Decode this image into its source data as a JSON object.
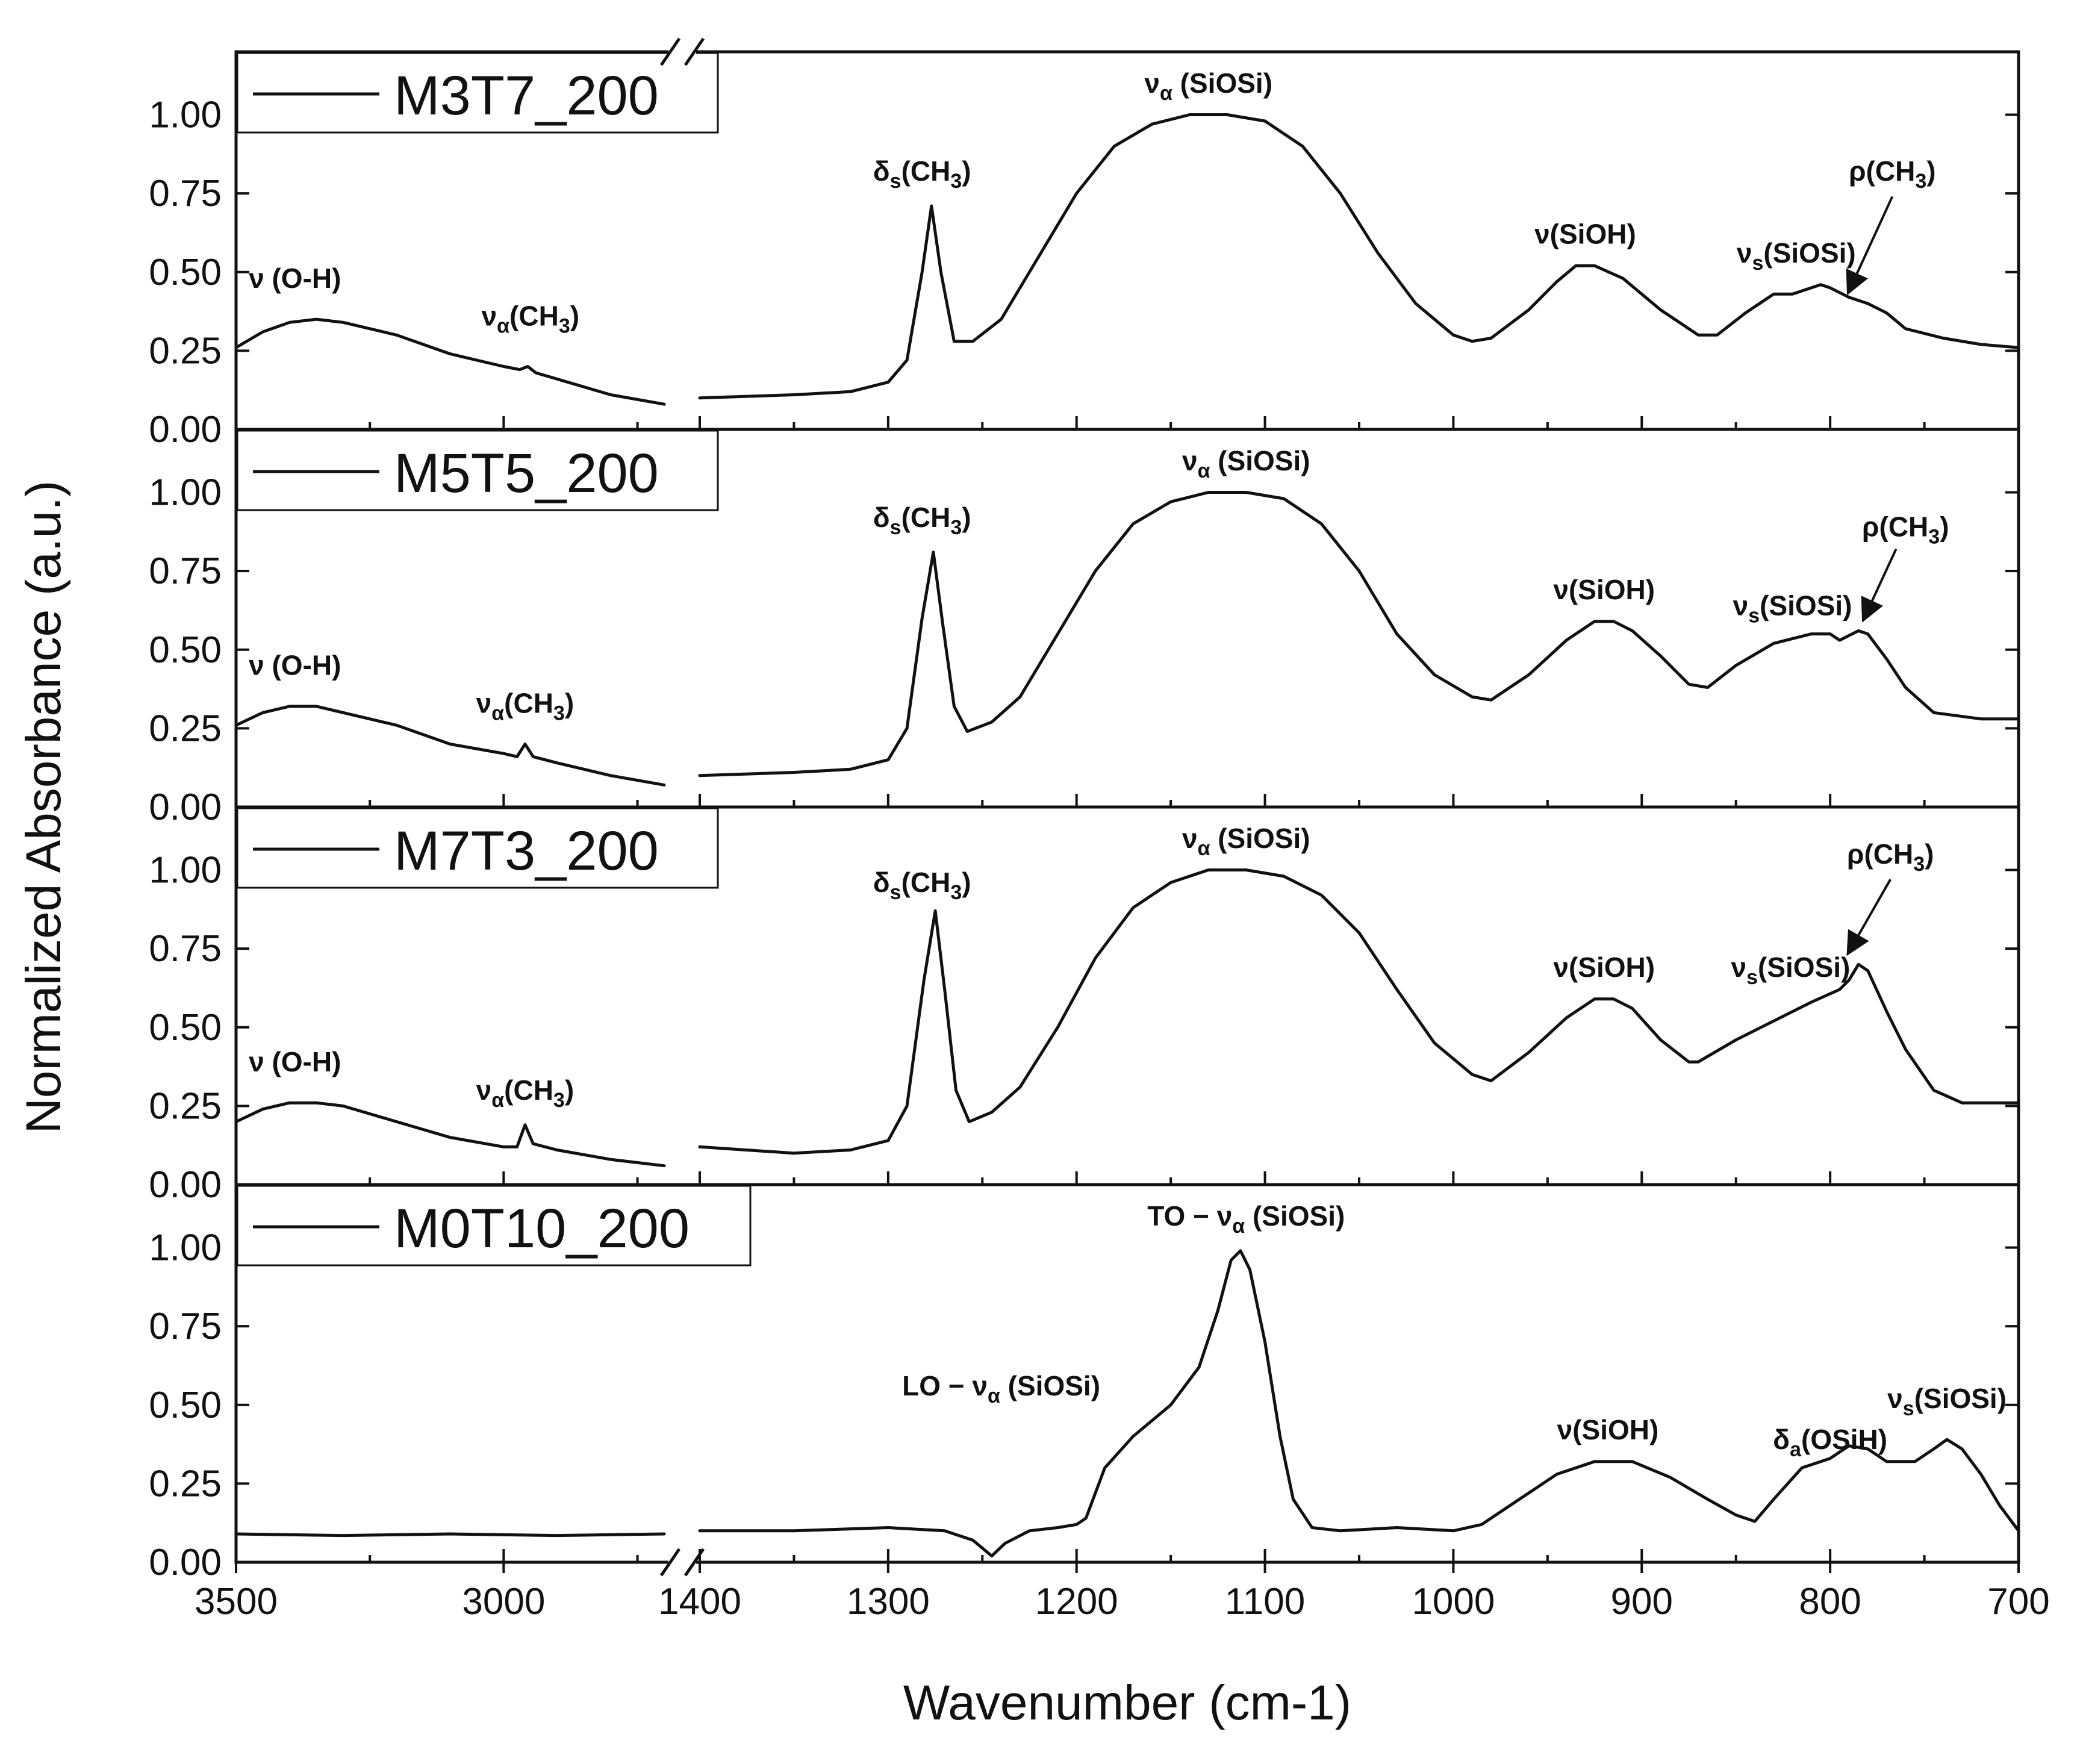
{
  "chart_data": {
    "type": "line",
    "title": "",
    "xlabel": "Wavenumber (cm-1)",
    "ylabel": "Normalized Absorbance (a.u.)",
    "x_axis": {
      "segments": [
        [
          3500,
          2700
        ],
        [
          1400,
          700
        ]
      ],
      "break": [
        2700,
        1400
      ],
      "ticks": [
        3500,
        3000,
        1400,
        1300,
        1200,
        1100,
        1000,
        900,
        800,
        700
      ],
      "tick_labels": [
        "3500",
        "3000",
        "1400",
        "1300",
        "1200",
        "1100",
        "1000",
        "900",
        "800",
        "700"
      ],
      "reversed": true
    },
    "y_axis": {
      "ylim": [
        0,
        1.2
      ],
      "ticks": [
        0,
        0.25,
        0.5,
        0.75,
        1.0
      ],
      "tick_labels": [
        "0.00",
        "0.25",
        "0.50",
        "0.75",
        "1.00"
      ]
    },
    "panels": [
      {
        "name": "M3T7_200",
        "points": [
          [
            3500,
            0.26
          ],
          [
            3450,
            0.31
          ],
          [
            3400,
            0.34
          ],
          [
            3350,
            0.35
          ],
          [
            3300,
            0.34
          ],
          [
            3200,
            0.3
          ],
          [
            3100,
            0.24
          ],
          [
            3000,
            0.2
          ],
          [
            2970,
            0.19
          ],
          [
            2955,
            0.2
          ],
          [
            2940,
            0.18
          ],
          [
            2900,
            0.16
          ],
          [
            2800,
            0.11
          ],
          [
            2700,
            0.08
          ],
          [
            1400,
            0.1
          ],
          [
            1350,
            0.11
          ],
          [
            1320,
            0.12
          ],
          [
            1300,
            0.15
          ],
          [
            1290,
            0.22
          ],
          [
            1282,
            0.5
          ],
          [
            1277,
            0.71
          ],
          [
            1272,
            0.5
          ],
          [
            1265,
            0.28
          ],
          [
            1255,
            0.28
          ],
          [
            1240,
            0.35
          ],
          [
            1220,
            0.55
          ],
          [
            1200,
            0.75
          ],
          [
            1180,
            0.9
          ],
          [
            1160,
            0.97
          ],
          [
            1140,
            1.0
          ],
          [
            1120,
            1.0
          ],
          [
            1100,
            0.98
          ],
          [
            1080,
            0.9
          ],
          [
            1060,
            0.75
          ],
          [
            1040,
            0.56
          ],
          [
            1020,
            0.4
          ],
          [
            1000,
            0.3
          ],
          [
            990,
            0.28
          ],
          [
            980,
            0.29
          ],
          [
            960,
            0.38
          ],
          [
            945,
            0.47
          ],
          [
            935,
            0.52
          ],
          [
            925,
            0.52
          ],
          [
            910,
            0.48
          ],
          [
            890,
            0.38
          ],
          [
            870,
            0.3
          ],
          [
            860,
            0.3
          ],
          [
            845,
            0.37
          ],
          [
            830,
            0.43
          ],
          [
            820,
            0.43
          ],
          [
            805,
            0.46
          ],
          [
            800,
            0.45
          ],
          [
            790,
            0.42
          ],
          [
            780,
            0.4
          ],
          [
            770,
            0.37
          ],
          [
            760,
            0.32
          ],
          [
            740,
            0.29
          ],
          [
            720,
            0.27
          ],
          [
            700,
            0.26
          ]
        ]
      },
      {
        "name": "M5T5_200",
        "points": [
          [
            3500,
            0.26
          ],
          [
            3450,
            0.3
          ],
          [
            3400,
            0.32
          ],
          [
            3350,
            0.32
          ],
          [
            3300,
            0.3
          ],
          [
            3200,
            0.26
          ],
          [
            3100,
            0.2
          ],
          [
            3000,
            0.17
          ],
          [
            2975,
            0.16
          ],
          [
            2960,
            0.2
          ],
          [
            2945,
            0.16
          ],
          [
            2900,
            0.14
          ],
          [
            2800,
            0.1
          ],
          [
            2700,
            0.07
          ],
          [
            1400,
            0.1
          ],
          [
            1350,
            0.11
          ],
          [
            1320,
            0.12
          ],
          [
            1300,
            0.15
          ],
          [
            1290,
            0.25
          ],
          [
            1282,
            0.6
          ],
          [
            1276,
            0.81
          ],
          [
            1271,
            0.58
          ],
          [
            1265,
            0.32
          ],
          [
            1258,
            0.24
          ],
          [
            1245,
            0.27
          ],
          [
            1230,
            0.35
          ],
          [
            1210,
            0.55
          ],
          [
            1190,
            0.75
          ],
          [
            1170,
            0.9
          ],
          [
            1150,
            0.97
          ],
          [
            1130,
            1.0
          ],
          [
            1110,
            1.0
          ],
          [
            1090,
            0.98
          ],
          [
            1070,
            0.9
          ],
          [
            1050,
            0.75
          ],
          [
            1030,
            0.55
          ],
          [
            1010,
            0.42
          ],
          [
            990,
            0.35
          ],
          [
            980,
            0.34
          ],
          [
            960,
            0.42
          ],
          [
            940,
            0.53
          ],
          [
            925,
            0.59
          ],
          [
            915,
            0.59
          ],
          [
            905,
            0.56
          ],
          [
            890,
            0.48
          ],
          [
            875,
            0.39
          ],
          [
            865,
            0.38
          ],
          [
            850,
            0.45
          ],
          [
            830,
            0.52
          ],
          [
            810,
            0.55
          ],
          [
            800,
            0.55
          ],
          [
            795,
            0.53
          ],
          [
            785,
            0.56
          ],
          [
            780,
            0.55
          ],
          [
            770,
            0.47
          ],
          [
            760,
            0.38
          ],
          [
            745,
            0.3
          ],
          [
            720,
            0.28
          ],
          [
            700,
            0.28
          ]
        ]
      },
      {
        "name": "M7T3_200",
        "points": [
          [
            3500,
            0.2
          ],
          [
            3450,
            0.24
          ],
          [
            3400,
            0.26
          ],
          [
            3350,
            0.26
          ],
          [
            3300,
            0.25
          ],
          [
            3200,
            0.2
          ],
          [
            3100,
            0.15
          ],
          [
            3000,
            0.12
          ],
          [
            2975,
            0.12
          ],
          [
            2960,
            0.19
          ],
          [
            2945,
            0.13
          ],
          [
            2900,
            0.11
          ],
          [
            2800,
            0.08
          ],
          [
            2700,
            0.06
          ],
          [
            1400,
            0.12
          ],
          [
            1350,
            0.1
          ],
          [
            1320,
            0.11
          ],
          [
            1300,
            0.14
          ],
          [
            1290,
            0.25
          ],
          [
            1281,
            0.65
          ],
          [
            1275,
            0.87
          ],
          [
            1270,
            0.62
          ],
          [
            1264,
            0.3
          ],
          [
            1257,
            0.2
          ],
          [
            1245,
            0.23
          ],
          [
            1230,
            0.31
          ],
          [
            1210,
            0.5
          ],
          [
            1190,
            0.72
          ],
          [
            1170,
            0.88
          ],
          [
            1150,
            0.96
          ],
          [
            1130,
            1.0
          ],
          [
            1110,
            1.0
          ],
          [
            1090,
            0.98
          ],
          [
            1070,
            0.92
          ],
          [
            1050,
            0.8
          ],
          [
            1030,
            0.62
          ],
          [
            1010,
            0.45
          ],
          [
            990,
            0.35
          ],
          [
            980,
            0.33
          ],
          [
            960,
            0.42
          ],
          [
            940,
            0.53
          ],
          [
            925,
            0.59
          ],
          [
            915,
            0.59
          ],
          [
            905,
            0.56
          ],
          [
            890,
            0.46
          ],
          [
            875,
            0.39
          ],
          [
            870,
            0.39
          ],
          [
            850,
            0.46
          ],
          [
            830,
            0.52
          ],
          [
            810,
            0.58
          ],
          [
            795,
            0.62
          ],
          [
            790,
            0.65
          ],
          [
            785,
            0.7
          ],
          [
            780,
            0.68
          ],
          [
            770,
            0.55
          ],
          [
            760,
            0.43
          ],
          [
            745,
            0.3
          ],
          [
            730,
            0.26
          ],
          [
            700,
            0.26
          ]
        ]
      },
      {
        "name": "M0T10_200",
        "points": [
          [
            3500,
            0.09
          ],
          [
            3300,
            0.085
          ],
          [
            3100,
            0.09
          ],
          [
            2900,
            0.085
          ],
          [
            2700,
            0.09
          ],
          [
            1400,
            0.1
          ],
          [
            1350,
            0.1
          ],
          [
            1300,
            0.11
          ],
          [
            1270,
            0.1
          ],
          [
            1255,
            0.07
          ],
          [
            1245,
            0.02
          ],
          [
            1238,
            0.06
          ],
          [
            1225,
            0.1
          ],
          [
            1210,
            0.11
          ],
          [
            1200,
            0.12
          ],
          [
            1195,
            0.14
          ],
          [
            1185,
            0.3
          ],
          [
            1170,
            0.4
          ],
          [
            1150,
            0.5
          ],
          [
            1135,
            0.62
          ],
          [
            1125,
            0.8
          ],
          [
            1118,
            0.96
          ],
          [
            1113,
            0.99
          ],
          [
            1108,
            0.93
          ],
          [
            1100,
            0.7
          ],
          [
            1092,
            0.4
          ],
          [
            1085,
            0.2
          ],
          [
            1075,
            0.11
          ],
          [
            1060,
            0.1
          ],
          [
            1030,
            0.11
          ],
          [
            1000,
            0.1
          ],
          [
            985,
            0.12
          ],
          [
            965,
            0.2
          ],
          [
            945,
            0.28
          ],
          [
            925,
            0.32
          ],
          [
            905,
            0.32
          ],
          [
            885,
            0.27
          ],
          [
            865,
            0.2
          ],
          [
            850,
            0.15
          ],
          [
            840,
            0.13
          ],
          [
            830,
            0.2
          ],
          [
            815,
            0.3
          ],
          [
            800,
            0.33
          ],
          [
            790,
            0.37
          ],
          [
            780,
            0.36
          ],
          [
            770,
            0.32
          ],
          [
            755,
            0.32
          ],
          [
            745,
            0.36
          ],
          [
            738,
            0.39
          ],
          [
            730,
            0.36
          ],
          [
            720,
            0.28
          ],
          [
            710,
            0.18
          ],
          [
            700,
            0.1
          ]
        ]
      }
    ],
    "annotations": [
      {
        "panel": 0,
        "label": "ν (O-H)",
        "x": 3390,
        "y": 0.45
      },
      {
        "panel": 0,
        "label": "να(CH3)",
        "x": 2950,
        "y": 0.33
      },
      {
        "panel": 0,
        "label": "δs(CH3)",
        "x": 1282,
        "y": 0.79
      },
      {
        "panel": 0,
        "label": "να (SiOSi)",
        "x": 1130,
        "y": 1.07
      },
      {
        "panel": 0,
        "label": "ν(SiOH)",
        "x": 930,
        "y": 0.59
      },
      {
        "panel": 0,
        "label": "νs(SiOSi)",
        "x": 818,
        "y": 0.53
      },
      {
        "panel": 0,
        "label": "ρ(CH3)",
        "x": 767,
        "y": 0.79
      },
      {
        "panel": 1,
        "label": "ν (O-H)",
        "x": 3390,
        "y": 0.42
      },
      {
        "panel": 1,
        "label": "να(CH3)",
        "x": 2960,
        "y": 0.3
      },
      {
        "panel": 1,
        "label": "δs(CH3)",
        "x": 1282,
        "y": 0.89
      },
      {
        "panel": 1,
        "label": "να (SiOSi)",
        "x": 1110,
        "y": 1.07
      },
      {
        "panel": 1,
        "label": "ν(SiOH)",
        "x": 920,
        "y": 0.66
      },
      {
        "panel": 1,
        "label": "νs(SiOSi)",
        "x": 820,
        "y": 0.61
      },
      {
        "panel": 1,
        "label": "ρ(CH3)",
        "x": 760,
        "y": 0.86
      },
      {
        "panel": 2,
        "label": "ν (O-H)",
        "x": 3390,
        "y": 0.36
      },
      {
        "panel": 2,
        "label": "να(CH3)",
        "x": 2960,
        "y": 0.27
      },
      {
        "panel": 2,
        "label": "δs(CH3)",
        "x": 1282,
        "y": 0.93
      },
      {
        "panel": 2,
        "label": "να (SiOSi)",
        "x": 1110,
        "y": 1.07
      },
      {
        "panel": 2,
        "label": "ν(SiOH)",
        "x": 920,
        "y": 0.66
      },
      {
        "panel": 2,
        "label": "νs(SiOSi)",
        "x": 821,
        "y": 0.66
      },
      {
        "panel": 2,
        "label": "ρ(CH3)",
        "x": 768,
        "y": 1.02
      },
      {
        "panel": 3,
        "label": "TO − να (SiOSi)",
        "x": 1110,
        "y": 1.07
      },
      {
        "panel": 3,
        "label": "LO − να (SiOSi)",
        "x": 1240,
        "y": 0.53
      },
      {
        "panel": 3,
        "label": "ν(SiOH)",
        "x": 918,
        "y": 0.39
      },
      {
        "panel": 3,
        "label": "δa(OSiH)",
        "x": 800,
        "y": 0.36
      },
      {
        "panel": 3,
        "label": "νs(SiOSi)",
        "x": 738,
        "y": 0.49
      }
    ],
    "arrows": [
      {
        "panel": 0,
        "from": [
          767,
          0.74
        ],
        "to": [
          790,
          0.44
        ]
      },
      {
        "panel": 1,
        "from": [
          765,
          0.82
        ],
        "to": [
          782,
          0.6
        ]
      },
      {
        "panel": 2,
        "from": [
          768,
          0.97
        ],
        "to": [
          790,
          0.74
        ]
      }
    ]
  }
}
